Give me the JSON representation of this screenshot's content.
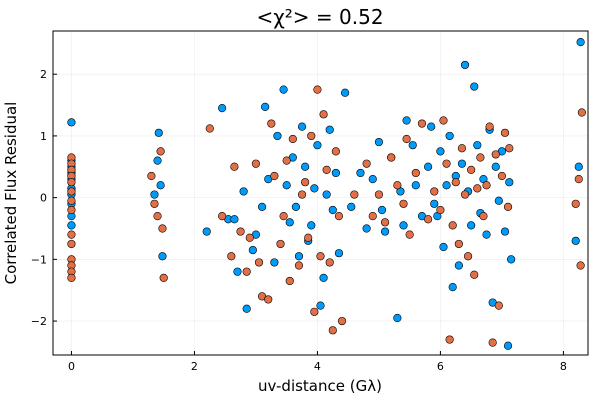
{
  "chart_data": {
    "type": "scatter",
    "title": "<χ²> = 0.52",
    "xlabel": "uv-distance (Gλ)",
    "ylabel": "Correlated Flux Residual",
    "xlim": [
      -0.3,
      8.4
    ],
    "ylim": [
      -2.55,
      2.7
    ],
    "xticks": [
      0,
      2,
      4,
      6,
      8
    ],
    "yticks": [
      -2,
      -1,
      0,
      1,
      2
    ],
    "grid": true,
    "legend": "none",
    "series": [
      {
        "color": "#009AFA",
        "points": [
          [
            0.0,
            1.22
          ],
          [
            0.0,
            0.6
          ],
          [
            0.0,
            0.5
          ],
          [
            0.0,
            0.4
          ],
          [
            0.0,
            0.3
          ],
          [
            0.0,
            0.15
          ],
          [
            0.0,
            0.05
          ],
          [
            0.0,
            -0.1
          ],
          [
            0.0,
            -0.3
          ],
          [
            0.0,
            -0.45
          ],
          [
            1.35,
            0.05
          ],
          [
            1.4,
            0.6
          ],
          [
            1.45,
            0.2
          ],
          [
            1.42,
            1.05
          ],
          [
            1.48,
            -0.95
          ],
          [
            2.2,
            -0.55
          ],
          [
            2.45,
            1.45
          ],
          [
            2.55,
            -0.35
          ],
          [
            2.65,
            -0.35
          ],
          [
            2.7,
            -1.2
          ],
          [
            2.8,
            0.1
          ],
          [
            2.85,
            -1.8
          ],
          [
            2.95,
            -0.85
          ],
          [
            3.0,
            -0.6
          ],
          [
            3.1,
            -0.15
          ],
          [
            3.15,
            1.47
          ],
          [
            3.2,
            0.3
          ],
          [
            3.3,
            -1.05
          ],
          [
            3.35,
            1.0
          ],
          [
            3.45,
            1.75
          ],
          [
            3.5,
            0.2
          ],
          [
            3.55,
            -0.4
          ],
          [
            3.6,
            0.65
          ],
          [
            3.65,
            -0.15
          ],
          [
            3.7,
            -0.95
          ],
          [
            3.75,
            1.15
          ],
          [
            3.8,
            0.5
          ],
          [
            3.85,
            -0.7
          ],
          [
            3.9,
            -0.45
          ],
          [
            3.95,
            0.15
          ],
          [
            4.0,
            0.85
          ],
          [
            4.05,
            -1.75
          ],
          [
            4.1,
            -1.3
          ],
          [
            4.15,
            0.05
          ],
          [
            4.2,
            1.1
          ],
          [
            4.25,
            -0.2
          ],
          [
            4.3,
            0.4
          ],
          [
            4.35,
            -0.9
          ],
          [
            4.45,
            1.7
          ],
          [
            4.55,
            -0.15
          ],
          [
            4.7,
            0.4
          ],
          [
            4.8,
            -0.5
          ],
          [
            4.9,
            0.3
          ],
          [
            5.0,
            0.9
          ],
          [
            5.05,
            -0.2
          ],
          [
            5.1,
            -0.55
          ],
          [
            5.2,
            0.65
          ],
          [
            5.3,
            -1.95
          ],
          [
            5.35,
            0.1
          ],
          [
            5.4,
            -0.45
          ],
          [
            5.45,
            1.25
          ],
          [
            5.55,
            0.85
          ],
          [
            5.6,
            0.2
          ],
          [
            5.7,
            -0.3
          ],
          [
            5.8,
            0.5
          ],
          [
            5.85,
            1.15
          ],
          [
            5.9,
            -0.1
          ],
          [
            5.95,
            -0.3
          ],
          [
            6.0,
            0.75
          ],
          [
            6.05,
            -0.8
          ],
          [
            6.1,
            0.2
          ],
          [
            6.15,
            1.0
          ],
          [
            6.2,
            -1.45
          ],
          [
            6.25,
            0.35
          ],
          [
            6.3,
            -1.1
          ],
          [
            6.35,
            0.55
          ],
          [
            6.4,
            2.15
          ],
          [
            6.45,
            0.1
          ],
          [
            6.5,
            -0.45
          ],
          [
            6.55,
            1.8
          ],
          [
            6.6,
            0.85
          ],
          [
            6.65,
            -0.25
          ],
          [
            6.7,
            0.3
          ],
          [
            6.75,
            -0.6
          ],
          [
            6.8,
            1.1
          ],
          [
            6.85,
            -1.7
          ],
          [
            6.9,
            0.5
          ],
          [
            6.95,
            -0.05
          ],
          [
            7.0,
            0.75
          ],
          [
            7.05,
            -0.55
          ],
          [
            7.1,
            -2.4
          ],
          [
            7.12,
            0.25
          ],
          [
            7.15,
            -1.0
          ],
          [
            8.2,
            -0.7
          ],
          [
            8.25,
            0.5
          ],
          [
            8.28,
            2.52
          ]
        ]
      },
      {
        "color": "#E26F46",
        "points": [
          [
            0.0,
            0.65
          ],
          [
            0.0,
            0.55
          ],
          [
            0.0,
            0.45
          ],
          [
            0.0,
            0.35
          ],
          [
            0.0,
            0.25
          ],
          [
            0.0,
            0.1
          ],
          [
            0.0,
            -0.05
          ],
          [
            0.0,
            -0.2
          ],
          [
            0.0,
            -0.6
          ],
          [
            0.0,
            -0.75
          ],
          [
            0.0,
            -1.0
          ],
          [
            0.0,
            -1.1
          ],
          [
            0.0,
            -1.2
          ],
          [
            0.0,
            -1.3
          ],
          [
            1.3,
            0.35
          ],
          [
            1.35,
            -0.1
          ],
          [
            1.4,
            -0.3
          ],
          [
            1.45,
            0.75
          ],
          [
            1.48,
            -0.5
          ],
          [
            1.5,
            -1.3
          ],
          [
            2.25,
            1.12
          ],
          [
            2.45,
            -0.3
          ],
          [
            2.6,
            -0.95
          ],
          [
            2.65,
            0.5
          ],
          [
            2.75,
            -0.55
          ],
          [
            2.85,
            -1.2
          ],
          [
            2.9,
            -0.65
          ],
          [
            3.0,
            0.55
          ],
          [
            3.05,
            -1.05
          ],
          [
            3.1,
            -1.6
          ],
          [
            3.2,
            -1.65
          ],
          [
            3.25,
            1.2
          ],
          [
            3.3,
            0.35
          ],
          [
            3.4,
            -0.75
          ],
          [
            3.45,
            -0.3
          ],
          [
            3.5,
            0.6
          ],
          [
            3.55,
            -1.35
          ],
          [
            3.6,
            0.95
          ],
          [
            3.7,
            -1.1
          ],
          [
            3.75,
            0.05
          ],
          [
            3.8,
            0.25
          ],
          [
            3.85,
            -0.65
          ],
          [
            3.9,
            1.0
          ],
          [
            3.95,
            -1.85
          ],
          [
            4.0,
            1.75
          ],
          [
            4.05,
            -0.95
          ],
          [
            4.1,
            1.35
          ],
          [
            4.15,
            0.45
          ],
          [
            4.2,
            -1.05
          ],
          [
            4.25,
            -2.15
          ],
          [
            4.3,
            0.75
          ],
          [
            4.35,
            -0.3
          ],
          [
            4.4,
            -2.0
          ],
          [
            4.6,
            0.05
          ],
          [
            4.8,
            0.55
          ],
          [
            4.9,
            -0.3
          ],
          [
            5.0,
            0.05
          ],
          [
            5.1,
            -0.4
          ],
          [
            5.2,
            0.65
          ],
          [
            5.3,
            0.2
          ],
          [
            5.4,
            -0.1
          ],
          [
            5.45,
            0.95
          ],
          [
            5.5,
            -0.6
          ],
          [
            5.6,
            0.4
          ],
          [
            5.7,
            1.2
          ],
          [
            5.8,
            -0.35
          ],
          [
            5.9,
            0.1
          ],
          [
            6.0,
            -0.2
          ],
          [
            6.05,
            1.25
          ],
          [
            6.1,
            0.55
          ],
          [
            6.15,
            -2.3
          ],
          [
            6.2,
            -0.45
          ],
          [
            6.25,
            0.25
          ],
          [
            6.3,
            -0.75
          ],
          [
            6.35,
            0.8
          ],
          [
            6.4,
            0.05
          ],
          [
            6.45,
            -0.95
          ],
          [
            6.5,
            0.45
          ],
          [
            6.55,
            -1.25
          ],
          [
            6.6,
            0.15
          ],
          [
            6.65,
            0.65
          ],
          [
            6.7,
            -0.3
          ],
          [
            6.75,
            0.2
          ],
          [
            6.8,
            1.15
          ],
          [
            6.85,
            -2.35
          ],
          [
            6.9,
            0.7
          ],
          [
            6.95,
            -1.75
          ],
          [
            7.0,
            0.35
          ],
          [
            7.05,
            1.05
          ],
          [
            7.1,
            -0.15
          ],
          [
            7.12,
            0.8
          ],
          [
            8.2,
            -0.1
          ],
          [
            8.25,
            0.3
          ],
          [
            8.28,
            -1.1
          ],
          [
            8.3,
            1.38
          ]
        ]
      }
    ]
  }
}
